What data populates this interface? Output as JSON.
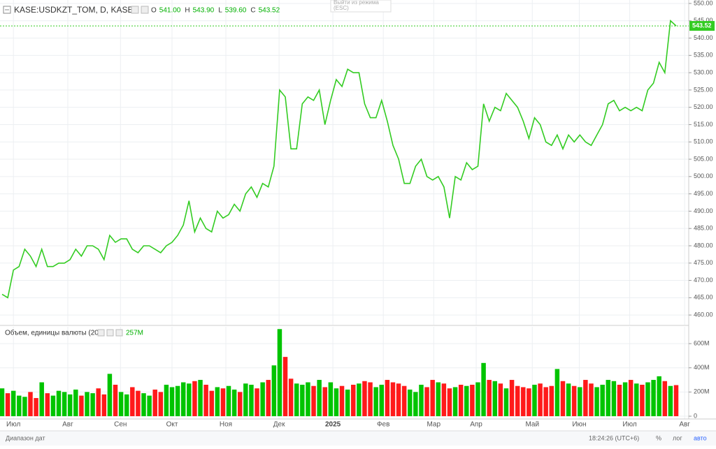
{
  "chart_data": [
    {
      "type": "line",
      "title": "KASE:USDKZT_TOM, D, KASE",
      "ohlc": [
        {
          "label": "O",
          "text": "541.00"
        },
        {
          "label": "H",
          "text": "543.90"
        },
        {
          "label": "L",
          "text": "539.60"
        },
        {
          "label": "C",
          "text": "543.52"
        }
      ],
      "series": [
        {
          "color": "#33cc22",
          "values": [
            466,
            465,
            473,
            474,
            479,
            477,
            474,
            479,
            474,
            474,
            475,
            475,
            476,
            479,
            477,
            480,
            480,
            479,
            476,
            483,
            481,
            482,
            482,
            479,
            478,
            480,
            480,
            479,
            478,
            480,
            481,
            483,
            486,
            493,
            484,
            488,
            485,
            484,
            490,
            488,
            489,
            492,
            490,
            495,
            497,
            494,
            498,
            497,
            503,
            525,
            523,
            508,
            508,
            521,
            523,
            522,
            525,
            515,
            522,
            528,
            526,
            531,
            530,
            530,
            521,
            517,
            517,
            522,
            516,
            509,
            505,
            498,
            498,
            503,
            505,
            500,
            499,
            500,
            497,
            488,
            500,
            499,
            504,
            502,
            503,
            521,
            516,
            520,
            519,
            524,
            522,
            520,
            516,
            511,
            517,
            515,
            510,
            509,
            512,
            508,
            512,
            510,
            512,
            510,
            509,
            512,
            515,
            521,
            522,
            519,
            520,
            519,
            520,
            519,
            525,
            527,
            533,
            530,
            545,
            543.52
          ]
        }
      ],
      "xlim": [
        0,
        119
      ],
      "xticks": [
        {
          "value": 2,
          "label": "Июл"
        },
        {
          "value": 11.6,
          "label": "Авг"
        },
        {
          "value": 20.9,
          "label": "Сен"
        },
        {
          "value": 30,
          "label": "Окт"
        },
        {
          "value": 39.5,
          "label": "Ноя"
        },
        {
          "value": 48.9,
          "label": "Дек"
        },
        {
          "value": 58.4,
          "label": "2025"
        },
        {
          "value": 67.3,
          "label": "Фев"
        },
        {
          "value": 76.2,
          "label": "Мар"
        },
        {
          "value": 83.7,
          "label": "Апр"
        },
        {
          "value": 93.6,
          "label": "Май"
        },
        {
          "value": 101.9,
          "label": "Июн"
        },
        {
          "value": 110.8,
          "label": "Июл"
        },
        {
          "value": 120.5,
          "label": "Авг"
        }
      ],
      "ylim": [
        457.2,
        551
      ],
      "yticks": [
        {
          "value": 460,
          "label": "460.00"
        },
        {
          "value": 465,
          "label": "465.00"
        },
        {
          "value": 470,
          "label": "470.00"
        },
        {
          "value": 475,
          "label": "475.00"
        },
        {
          "value": 480,
          "label": "480.00"
        },
        {
          "value": 485,
          "label": "485.00"
        },
        {
          "value": 490,
          "label": "490.00"
        },
        {
          "value": 495,
          "label": "495.00"
        },
        {
          "value": 500,
          "label": "500.00"
        },
        {
          "value": 505,
          "label": "505.00"
        },
        {
          "value": 510,
          "label": "510.00"
        },
        {
          "value": 515,
          "label": "515.00"
        },
        {
          "value": 520,
          "label": "520.00"
        },
        {
          "value": 525,
          "label": "525.00"
        },
        {
          "value": 530,
          "label": "530.00"
        },
        {
          "value": 535,
          "label": "535.00"
        },
        {
          "value": 540,
          "label": "540.00"
        },
        {
          "value": 545,
          "label": "545.00"
        },
        {
          "value": 550,
          "label": "550.00"
        }
      ],
      "grid": true
    },
    {
      "type": "bar",
      "title": "Объем, единицы валюты (20)",
      "last_label": "257M",
      "up_color": "#00c400",
      "down_color": "#ff1a1a",
      "values": [
        230,
        190,
        210,
        170,
        160,
        200,
        150,
        280,
        190,
        170,
        210,
        200,
        180,
        220,
        170,
        200,
        190,
        230,
        180,
        350,
        260,
        200,
        180,
        240,
        210,
        190,
        170,
        220,
        200,
        260,
        240,
        250,
        280,
        270,
        290,
        300,
        260,
        210,
        240,
        230,
        250,
        220,
        200,
        270,
        260,
        230,
        280,
        300,
        420,
        720,
        490,
        310,
        270,
        260,
        280,
        250,
        300,
        240,
        280,
        230,
        250,
        220,
        260,
        270,
        290,
        280,
        240,
        260,
        300,
        280,
        270,
        250,
        220,
        200,
        260,
        240,
        300,
        280,
        270,
        230,
        240,
        260,
        250,
        260,
        280,
        440,
        300,
        290,
        270,
        230,
        300,
        250,
        240,
        230,
        260,
        270,
        240,
        250,
        390,
        290,
        270,
        250,
        240,
        300,
        270,
        240,
        260,
        300,
        290,
        260,
        280,
        300,
        270,
        260,
        280,
        300,
        330,
        290,
        250,
        257
      ],
      "ylim": [
        -23,
        739
      ],
      "yticks": [
        0,
        {
          "value": 200,
          "label": "200M"
        },
        {
          "value": 400,
          "label": "400M"
        },
        {
          "value": 600,
          "label": "600M"
        }
      ],
      "grid": true
    }
  ],
  "tooltip": {
    "line1": "Выйти из режима",
    "line2": "(ESC)"
  },
  "footer": {
    "range": "Диапазон дат",
    "time": "18:24:26 (UTC+6)",
    "percent": "%",
    "log": "лог",
    "auto": "авто"
  }
}
